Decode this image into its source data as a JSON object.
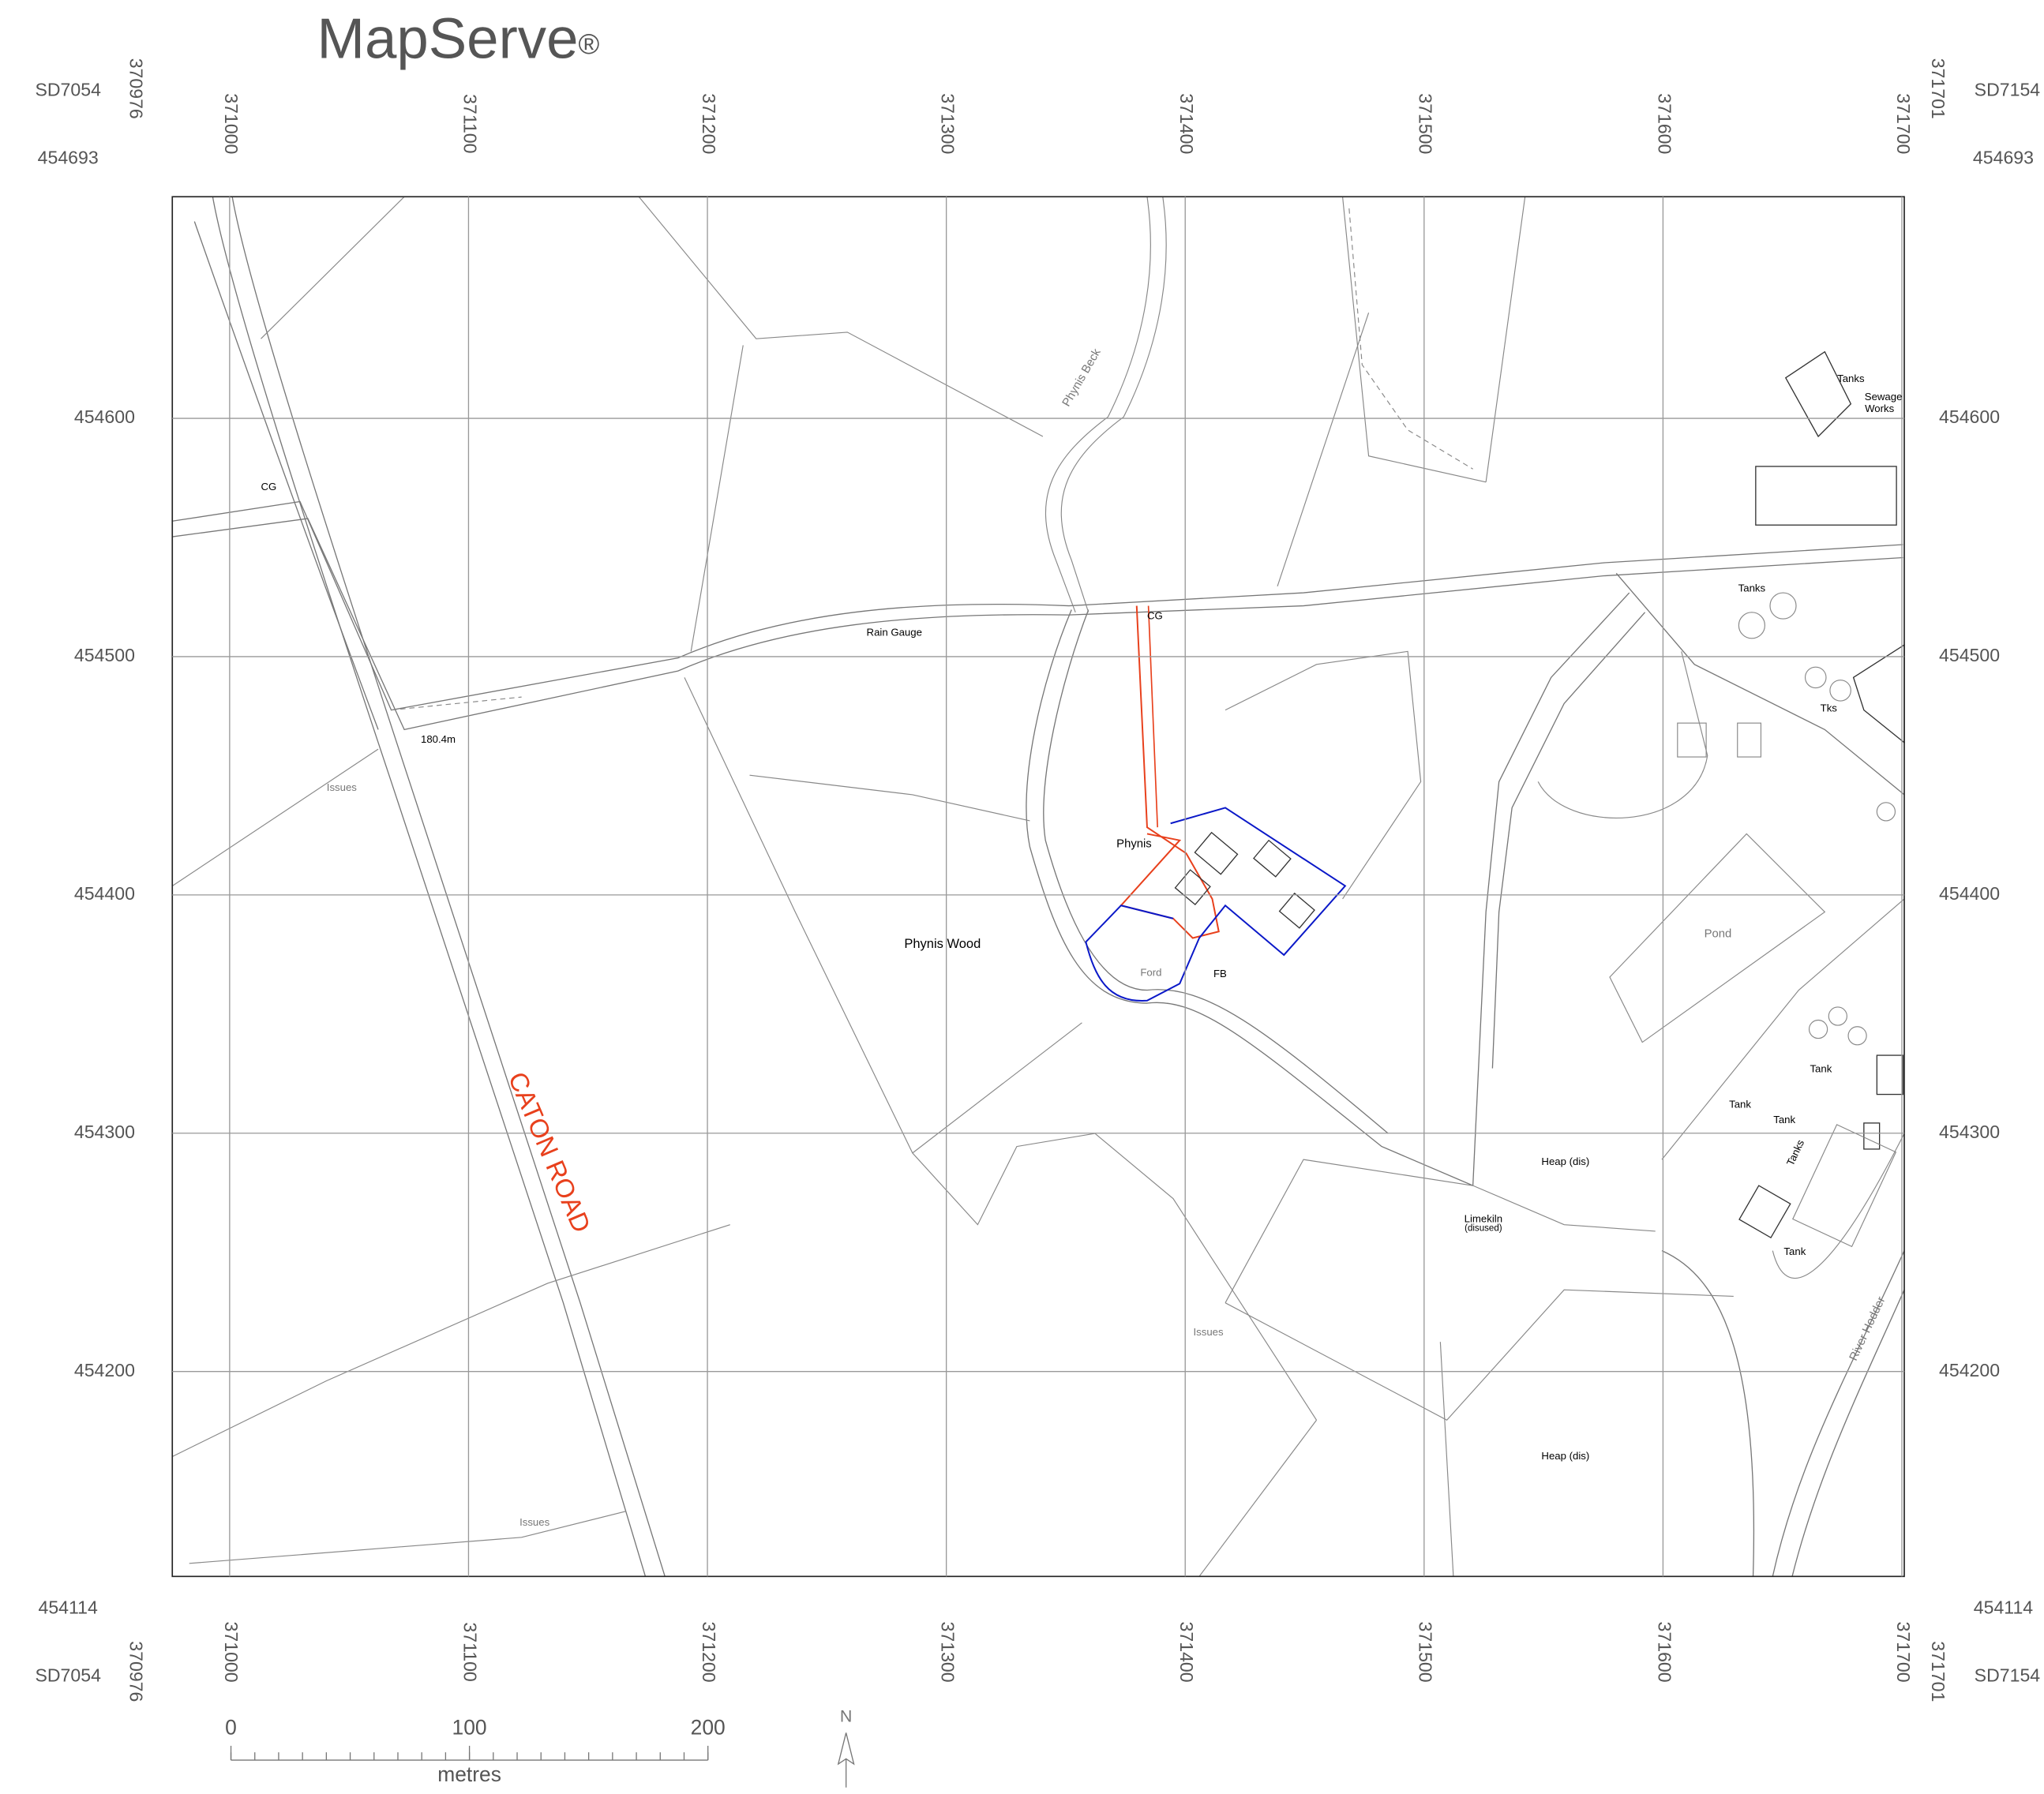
{
  "header": {
    "title": "MapServe",
    "mark": "®"
  },
  "sheet_west": "SD7054",
  "sheet_east": "SD7154",
  "easting_min": 370976,
  "easting_max": 371701,
  "northing_max": 454693,
  "northing_min": 454114,
  "eastings": [
    371000,
    371100,
    371200,
    371300,
    371400,
    371500,
    371600,
    371700
  ],
  "northings": [
    454600,
    454500,
    454400,
    454300,
    454200
  ],
  "labels": [
    "CG",
    "Rain Gauge",
    "180.4m",
    "Issues",
    "Phynis Beck",
    "CG",
    "Phynis",
    "Phynis Wood",
    "Ford",
    "FB",
    "CATON ROAD",
    "Tanks",
    "Sewage",
    "Works",
    "Tanks",
    "Tks",
    "Pond",
    "Tank",
    "Tank",
    "Tank",
    "Tanks",
    "Heap (dis)",
    "Limekiln",
    "(disused)",
    "Tank",
    "Issues",
    "River Hodder",
    "Heap (dis)",
    "Issues"
  ],
  "scale_bar": {
    "ticks": [
      0,
      100,
      200
    ],
    "unit": "metres"
  },
  "north": "N"
}
